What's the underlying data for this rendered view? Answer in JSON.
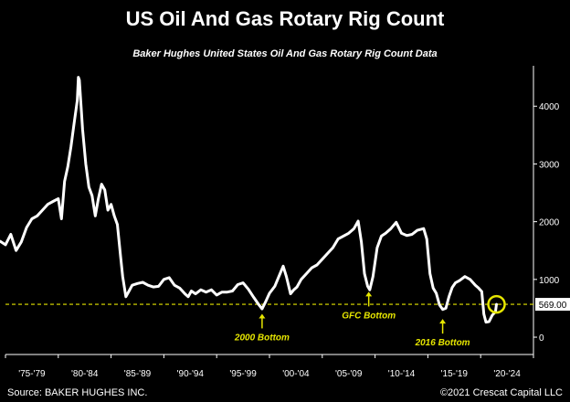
{
  "header": {
    "title": "US Oil And Gas Rotary Rig Count",
    "subtitle": "Baker Hughes United States Oil And Gas Rotary Rig Count Data"
  },
  "footer": {
    "source": "Source: BAKER HUGHES INC.",
    "copyright": "©2021 Crescat Capital LLC"
  },
  "chart_data": {
    "type": "line",
    "title": "US Oil And Gas Rotary Rig Count",
    "subtitle": "Baker Hughes United States Oil And Gas Rotary Rig Count Data",
    "xlabel": "",
    "ylabel": "",
    "xlim": [
      1975,
      2025
    ],
    "ylim": [
      -300,
      4700
    ],
    "yaxis_side": "right",
    "grid": false,
    "background": "#000000",
    "line_color": "#ffffff",
    "accent_color": "#e6e600",
    "x_tick_labels": [
      {
        "x": 1977.5,
        "label": "'75-'79"
      },
      {
        "x": 1982.5,
        "label": "'80-'84"
      },
      {
        "x": 1987.5,
        "label": "'85-'89"
      },
      {
        "x": 1992.5,
        "label": "'90-'94"
      },
      {
        "x": 1997.5,
        "label": "'95-'99"
      },
      {
        "x": 2002.5,
        "label": "'00-'04"
      },
      {
        "x": 2007.5,
        "label": "'05-'09"
      },
      {
        "x": 2012.5,
        "label": "'10-'14"
      },
      {
        "x": 2017.5,
        "label": "'15-'19"
      },
      {
        "x": 2022.5,
        "label": "'20-'24"
      }
    ],
    "y_ticks": [
      0,
      1000,
      2000,
      3000,
      4000
    ],
    "reference_line": {
      "value": 569,
      "label": "569.00",
      "style": "dashed"
    },
    "annotations": [
      {
        "label": "2000 Bottom",
        "x": 1999.3,
        "y": 500
      },
      {
        "label": "GFC Bottom",
        "x": 2009.4,
        "y": 880
      },
      {
        "label": "2016 Bottom",
        "x": 2016.4,
        "y": 410
      }
    ],
    "highlight": {
      "x": 2021.5,
      "y": 569
    },
    "series": [
      {
        "name": "",
        "x": [
          1974.0,
          1974.5,
          1975.0,
          1975.5,
          1976.0,
          1976.5,
          1977.0,
          1977.5,
          1978.0,
          1978.5,
          1979.0,
          1979.5,
          1980.0,
          1980.3,
          1980.6,
          1980.9,
          1981.2,
          1981.5,
          1981.8,
          1981.9,
          1982.0,
          1982.3,
          1982.6,
          1982.9,
          1983.2,
          1983.5,
          1983.8,
          1984.1,
          1984.4,
          1984.7,
          1985.0,
          1985.3,
          1985.6,
          1985.9,
          1986.1,
          1986.4,
          1986.7,
          1987.0,
          1987.5,
          1988.0,
          1988.5,
          1989.0,
          1989.5,
          1990.0,
          1990.5,
          1991.0,
          1991.5,
          1992.0,
          1992.3,
          1992.6,
          1993.0,
          1993.5,
          1994.0,
          1994.5,
          1995.0,
          1995.5,
          1996.0,
          1996.5,
          1997.0,
          1997.5,
          1998.0,
          1998.5,
          1999.0,
          1999.3,
          1999.6,
          2000.0,
          2000.5,
          2001.0,
          2001.3,
          2001.6,
          2002.0,
          2002.3,
          2002.6,
          2003.0,
          2003.5,
          2004.0,
          2004.5,
          2005.0,
          2005.5,
          2006.0,
          2006.5,
          2007.0,
          2007.5,
          2008.0,
          2008.4,
          2008.7,
          2009.0,
          2009.3,
          2009.5,
          2009.8,
          2010.2,
          2010.6,
          2011.0,
          2011.5,
          2012.0,
          2012.5,
          2013.0,
          2013.5,
          2014.0,
          2014.6,
          2014.9,
          2015.2,
          2015.5,
          2015.8,
          2016.1,
          2016.4,
          2016.7,
          2017.0,
          2017.3,
          2017.6,
          2018.0,
          2018.5,
          2019.0,
          2019.5,
          2019.8,
          2020.1,
          2020.3,
          2020.5,
          2020.8,
          2021.1,
          2021.4,
          2021.5
        ],
        "y": [
          1620,
          1660,
          1600,
          1780,
          1500,
          1650,
          1900,
          2050,
          2100,
          2200,
          2300,
          2350,
          2400,
          2050,
          2700,
          2950,
          3300,
          3700,
          4100,
          4500,
          4450,
          3600,
          3000,
          2600,
          2450,
          2100,
          2400,
          2650,
          2550,
          2200,
          2300,
          2100,
          1950,
          1400,
          1050,
          700,
          800,
          900,
          930,
          950,
          900,
          870,
          880,
          1000,
          1030,
          900,
          850,
          750,
          700,
          800,
          750,
          820,
          780,
          820,
          730,
          780,
          780,
          800,
          910,
          940,
          830,
          690,
          560,
          490,
          600,
          760,
          880,
          1100,
          1230,
          1050,
          750,
          820,
          870,
          1000,
          1100,
          1200,
          1250,
          1350,
          1450,
          1550,
          1700,
          1750,
          1800,
          1880,
          2010,
          1650,
          1100,
          880,
          820,
          1050,
          1550,
          1750,
          1800,
          1880,
          1990,
          1800,
          1760,
          1780,
          1850,
          1880,
          1700,
          1100,
          850,
          760,
          560,
          480,
          500,
          700,
          860,
          940,
          980,
          1050,
          1000,
          900,
          850,
          790,
          400,
          260,
          270,
          380,
          440,
          569
        ]
      }
    ]
  }
}
